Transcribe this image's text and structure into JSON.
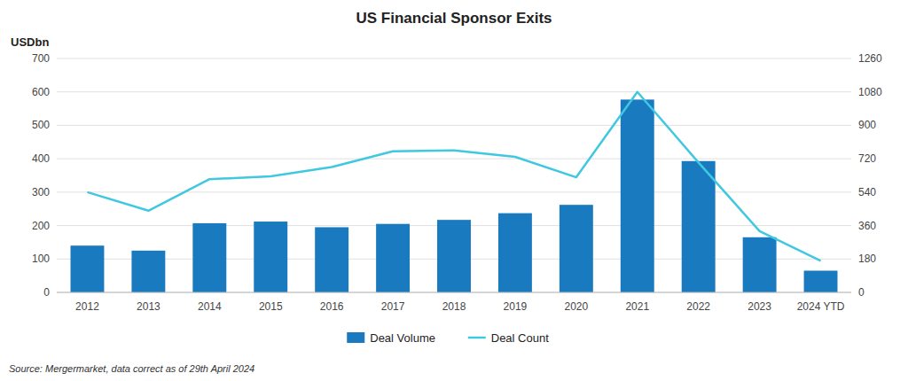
{
  "chart_data": {
    "type": "bar",
    "title": "US Financial Sponsor Exits",
    "ylabel": "USDbn",
    "source": "Source: Mergermarket, data correct as of 29th April 2024",
    "categories": [
      "2012",
      "2013",
      "2014",
      "2015",
      "2016",
      "2017",
      "2018",
      "2019",
      "2020",
      "2021",
      "2022",
      "2023",
      "2024 YTD"
    ],
    "series": [
      {
        "name": "Deal Volume",
        "type": "bar",
        "color": "#1a7abf",
        "values": [
          140,
          125,
          207,
          212,
          195,
          205,
          217,
          237,
          262,
          577,
          393,
          165,
          65
        ]
      },
      {
        "name": "Deal Count",
        "type": "line",
        "axis": "y2",
        "color": "#40c8e0",
        "values": [
          540,
          440,
          610,
          625,
          675,
          760,
          765,
          730,
          620,
          1080,
          700,
          330,
          170
        ]
      }
    ],
    "ylim": [
      0,
      700
    ],
    "yticks": [
      0,
      100,
      200,
      300,
      400,
      500,
      600,
      700
    ],
    "y2lim": [
      0,
      1260
    ],
    "y2ticks": [
      0,
      180,
      360,
      540,
      720,
      900,
      1080,
      1260
    ],
    "grid": true,
    "legend": "bottom"
  }
}
